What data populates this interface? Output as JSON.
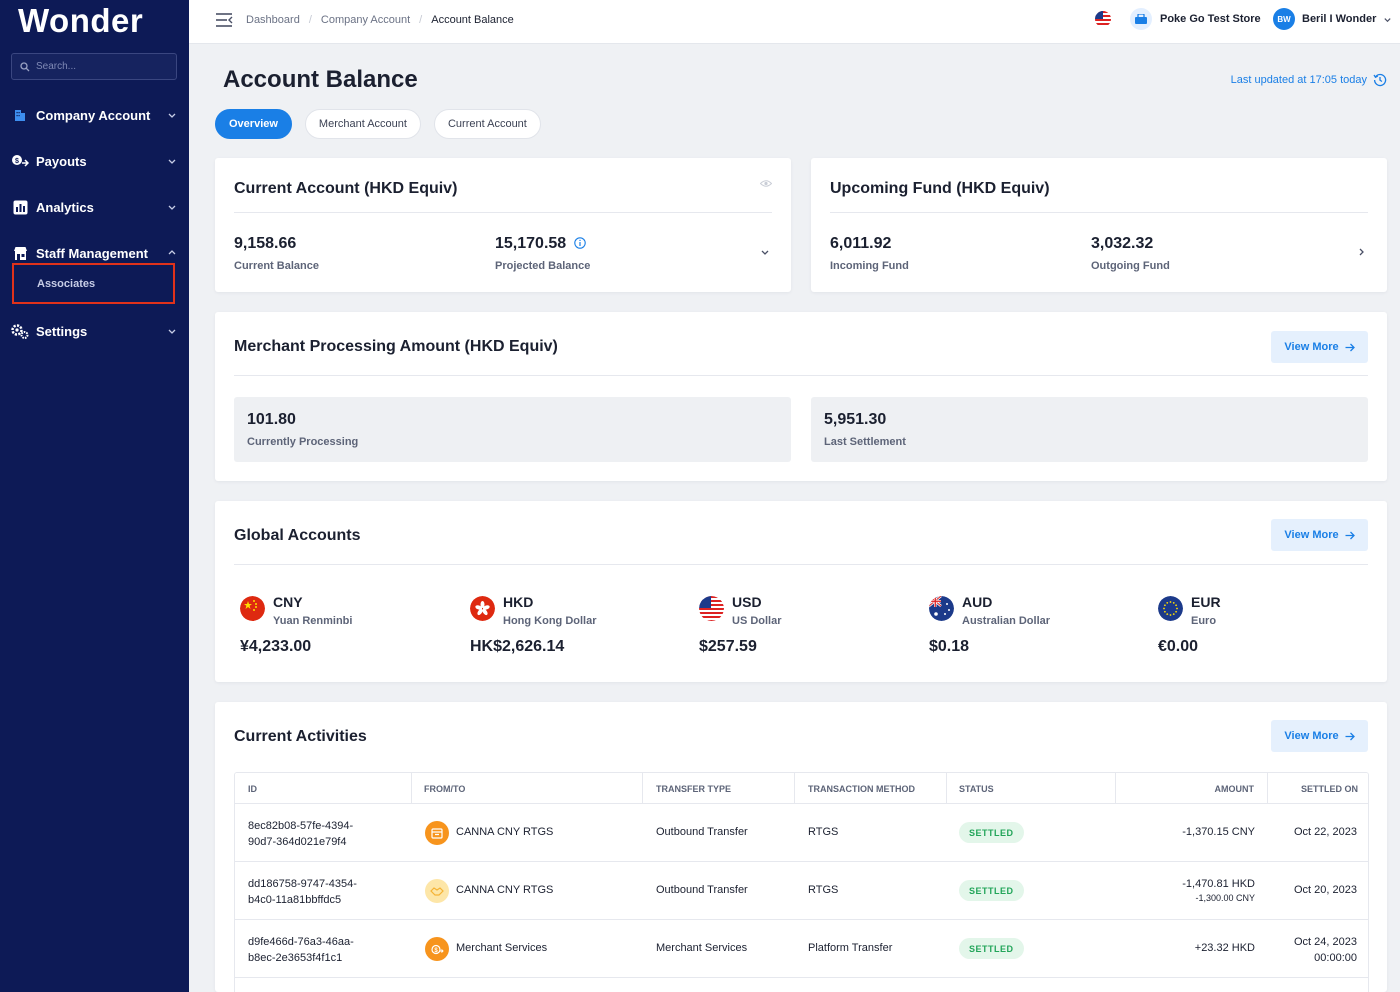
{
  "sidebar": {
    "logo": "Wonder",
    "search_placeholder": "Search...",
    "items": [
      {
        "label": "Company Account"
      },
      {
        "label": "Payouts"
      },
      {
        "label": "Analytics"
      },
      {
        "label": "Staff Management"
      },
      {
        "label": "Settings"
      }
    ],
    "sub_item": "Associates",
    "colors": {
      "background": "#0d1a56",
      "highlight": "#e0321b"
    }
  },
  "topbar": {
    "breadcrumb": [
      "Dashboard",
      "Company Account",
      "Account Balance"
    ],
    "store": "Poke Go Test Store",
    "user_initials": "BW",
    "user_name": "Beril I Wonder"
  },
  "page": {
    "title": "Account Balance",
    "last_updated": "Last updated at 17:05 today",
    "tabs": [
      "Overview",
      "Merchant Account",
      "Current Account"
    ],
    "accent": "#1a7fe6"
  },
  "current_account": {
    "title": "Current Account (HKD Equiv)",
    "current_balance": "9,158.66",
    "current_balance_label": "Current Balance",
    "projected_balance": "15,170.58",
    "projected_balance_label": "Projected Balance"
  },
  "upcoming_fund": {
    "title": "Upcoming Fund (HKD Equiv)",
    "incoming": "6,011.92",
    "incoming_label": "Incoming Fund",
    "outgoing": "3,032.32",
    "outgoing_label": "Outgoing Fund"
  },
  "merchant_processing": {
    "title": "Merchant Processing Amount (HKD Equiv)",
    "view_more": "View More",
    "processing": "101.80",
    "processing_label": "Currently Processing",
    "settlement": "5,951.30",
    "settlement_label": "Last Settlement"
  },
  "global_accounts": {
    "title": "Global Accounts",
    "view_more": "View More",
    "currencies": [
      {
        "code": "CNY",
        "name": "Yuan Renminbi",
        "amount": "¥4,233.00"
      },
      {
        "code": "HKD",
        "name": "Hong Kong Dollar",
        "amount": "HK$2,626.14"
      },
      {
        "code": "USD",
        "name": "US Dollar",
        "amount": "$257.59"
      },
      {
        "code": "AUD",
        "name": "Australian Dollar",
        "amount": "$0.18"
      },
      {
        "code": "EUR",
        "name": "Euro",
        "amount": "€0.00"
      }
    ]
  },
  "activities": {
    "title": "Current Activities",
    "view_more": "View More",
    "columns": [
      "ID",
      "FROM/TO",
      "TRANSFER TYPE",
      "TRANSACTION METHOD",
      "STATUS",
      "AMOUNT",
      "SETTLED ON"
    ],
    "rows": [
      {
        "id_1": "8ec82b08-57fe-4394-",
        "id_2": "90d7-364d021e79f4",
        "from_to": "CANNA CNY RTGS",
        "transfer_type": "Outbound Transfer",
        "method": "RTGS",
        "status": "SETTLED",
        "amount": "-1,370.15 CNY",
        "amount_sub": "",
        "settled_1": "Oct 22, 2023",
        "settled_2": ""
      },
      {
        "id_1": "dd186758-9747-4354-",
        "id_2": "b4c0-11a81bbffdc5",
        "from_to": "CANNA CNY RTGS",
        "transfer_type": "Outbound Transfer",
        "method": "RTGS",
        "status": "SETTLED",
        "amount": "-1,470.81 HKD",
        "amount_sub": "-1,300.00 CNY",
        "settled_1": "Oct 20, 2023",
        "settled_2": ""
      },
      {
        "id_1": "d9fe466d-76a3-46aa-",
        "id_2": "b8ec-2e3653f4f1c1",
        "from_to": "Merchant Services",
        "transfer_type": "Merchant Services",
        "method": "Platform Transfer",
        "status": "SETTLED",
        "amount": "+23.32 HKD",
        "amount_sub": "",
        "settled_1": "Oct 24, 2023",
        "settled_2": "00:00:00"
      }
    ]
  }
}
